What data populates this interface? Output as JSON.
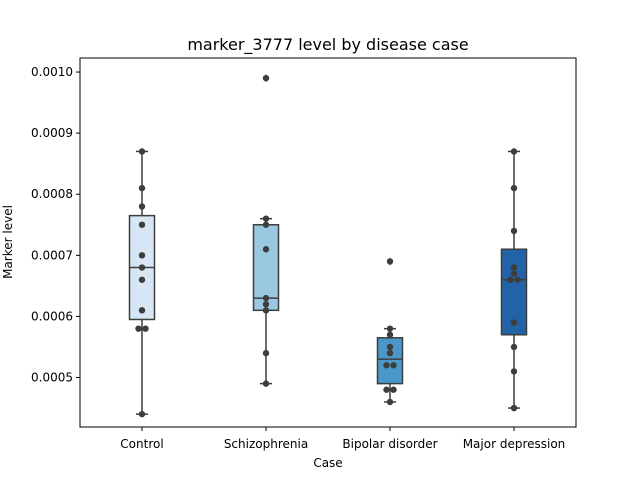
{
  "chart_data": {
    "type": "box",
    "title": "marker_3777 level by disease case",
    "xlabel": "Case",
    "ylabel": "Marker level",
    "ylim": [
      0.000419,
      0.001023
    ],
    "yticks": [
      "0.0005",
      "0.0006",
      "0.0007",
      "0.0008",
      "0.0009",
      "0.0010"
    ],
    "categories": [
      "Control",
      "Schizophrenia",
      "Bipolar disorder",
      "Major depression"
    ],
    "colors": [
      "#d6e6f4",
      "#9ac8e0",
      "#4a98c9",
      "#2263a8"
    ],
    "edge_color": "#3d3d3d",
    "point_color": "#3d3d3d",
    "boxes": [
      {
        "q1": 0.000595,
        "median": 0.00068,
        "q3": 0.000765,
        "whisker_low": 0.00044,
        "whisker_high": 0.00087,
        "fliers": []
      },
      {
        "q1": 0.00061,
        "median": 0.00063,
        "q3": 0.00075,
        "whisker_low": 0.00049,
        "whisker_high": 0.00076,
        "fliers": [
          0.00099
        ]
      },
      {
        "q1": 0.00049,
        "median": 0.00053,
        "q3": 0.000565,
        "whisker_low": 0.00046,
        "whisker_high": 0.00058,
        "fliers": [
          0.00069
        ]
      },
      {
        "q1": 0.00057,
        "median": 0.00066,
        "q3": 0.00071,
        "whisker_low": 0.00045,
        "whisker_high": 0.00087,
        "fliers": []
      }
    ],
    "points": [
      [
        0.00087,
        0.00081,
        0.00078,
        0.00075,
        0.0007,
        0.00068,
        0.00066,
        0.00061,
        0.00058,
        0.00058,
        0.00044
      ],
      [
        0.00099,
        0.00076,
        0.00075,
        0.00071,
        0.00063,
        0.00062,
        0.00061,
        0.00054,
        0.00049
      ],
      [
        0.00069,
        0.00058,
        0.00057,
        0.00055,
        0.00054,
        0.00052,
        0.00052,
        0.00048,
        0.00048,
        0.00046
      ],
      [
        0.00087,
        0.00081,
        0.00074,
        0.00068,
        0.00067,
        0.00066,
        0.00066,
        0.00059,
        0.00055,
        0.00051,
        0.00045
      ]
    ]
  }
}
